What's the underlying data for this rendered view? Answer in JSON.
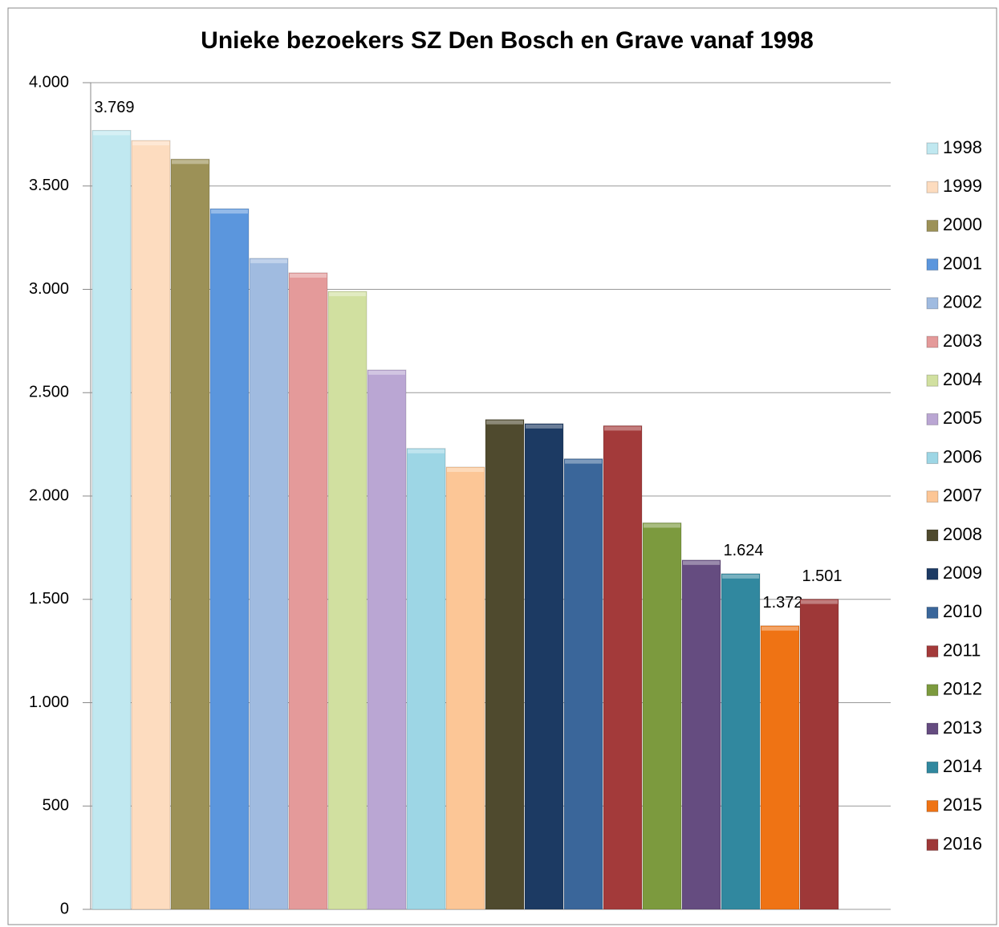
{
  "chart_data": {
    "type": "bar",
    "title": "Unieke bezoekers SZ Den Bosch en Grave vanaf 1998",
    "categories": [
      null
    ],
    "series": [
      {
        "name": "1998",
        "color": "#c0e8f0",
        "values": [
          3769
        ],
        "value_labels": [
          "3.769"
        ]
      },
      {
        "name": "1999",
        "color": "#fddcbf",
        "values": [
          3720
        ]
      },
      {
        "name": "2000",
        "color": "#9c9157",
        "values": [
          3630
        ]
      },
      {
        "name": "2001",
        "color": "#5b96dd",
        "values": [
          3390
        ]
      },
      {
        "name": "2002",
        "color": "#a0bbe0",
        "values": [
          3150
        ]
      },
      {
        "name": "2003",
        "color": "#e49a9a",
        "values": [
          3080
        ]
      },
      {
        "name": "2004",
        "color": "#d1e0a0",
        "values": [
          2990
        ]
      },
      {
        "name": "2005",
        "color": "#baa6d3",
        "values": [
          2610
        ]
      },
      {
        "name": "2006",
        "color": "#9dd6e5",
        "values": [
          2230
        ]
      },
      {
        "name": "2007",
        "color": "#fcc696",
        "values": [
          2140
        ]
      },
      {
        "name": "2008",
        "color": "#4f4a2e",
        "values": [
          2370
        ]
      },
      {
        "name": "2009",
        "color": "#1c3a63",
        "values": [
          2350
        ]
      },
      {
        "name": "2010",
        "color": "#3a669a",
        "values": [
          2180
        ]
      },
      {
        "name": "2011",
        "color": "#a33a3a",
        "values": [
          2340
        ]
      },
      {
        "name": "2012",
        "color": "#7c9a3e",
        "values": [
          1870
        ]
      },
      {
        "name": "2013",
        "color": "#654c80",
        "values": [
          1690
        ]
      },
      {
        "name": "2014",
        "color": "#31889f",
        "values": [
          1624
        ],
        "value_labels": [
          "1.624"
        ]
      },
      {
        "name": "2015",
        "color": "#ef7314",
        "values": [
          1372
        ],
        "value_labels": [
          "1.372"
        ]
      },
      {
        "name": "2016",
        "color": "#9e3838",
        "values": [
          1501
        ],
        "value_labels": [
          "1.501"
        ]
      }
    ],
    "ylim": [
      0,
      4000
    ],
    "yticks": [
      0,
      500,
      {
        "value": 1000,
        "label": "1.000"
      },
      {
        "value": 1500,
        "label": "1.500"
      },
      {
        "value": 2000,
        "label": "2.000"
      },
      {
        "value": 2500,
        "label": "2.500"
      },
      {
        "value": 3000,
        "label": "3.000"
      },
      {
        "value": 3500,
        "label": "3.500"
      },
      {
        "value": 4000,
        "label": "4.000"
      }
    ],
    "grid": true,
    "legend": "right"
  }
}
